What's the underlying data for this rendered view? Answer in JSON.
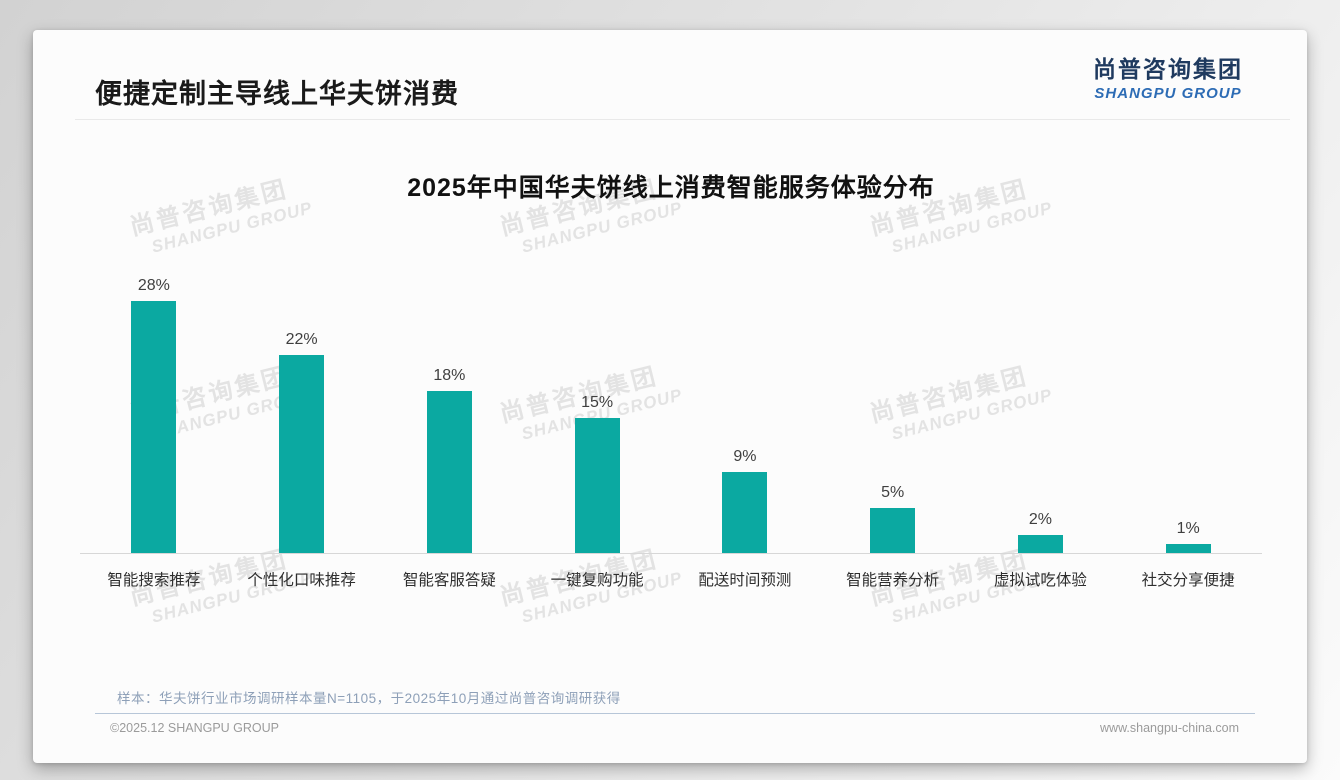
{
  "page": {
    "title": "便捷定制主导线上华夫饼消费",
    "logo": {
      "cn": "尚普咨询集团",
      "en": "SHANGPU GROUP"
    },
    "logo_colors": {
      "cn": "#1f3a5f",
      "en": "#2d6cb5"
    }
  },
  "watermark": {
    "line1": "尚普咨询集团",
    "line2": "SHANGPU GROUP"
  },
  "chart_data": {
    "type": "bar",
    "title": "2025年中国华夫饼线上消费智能服务体验分布",
    "categories": [
      "智能搜索推荐",
      "个性化口味推荐",
      "智能客服答疑",
      "一键复购功能",
      "配送时间预测",
      "智能营养分析",
      "虚拟试吃体验",
      "社交分享便捷"
    ],
    "values": [
      28,
      22,
      18,
      15,
      9,
      5,
      2,
      1
    ],
    "labels": [
      "28%",
      "22%",
      "18%",
      "15%",
      "9%",
      "5%",
      "2%",
      "1%"
    ],
    "unit": "%",
    "xlabel": "",
    "ylabel": "",
    "ylim": [
      0,
      30
    ],
    "grid": false,
    "legend": false,
    "bar_color": "#0ba9a1"
  },
  "footnote": "样本：华夫饼行业市场调研样本量N=1105，于2025年10月通过尚普咨询调研获得",
  "footer": {
    "left": "©2025.12 SHANGPU GROUP",
    "right": "www.shangpu-china.com"
  }
}
